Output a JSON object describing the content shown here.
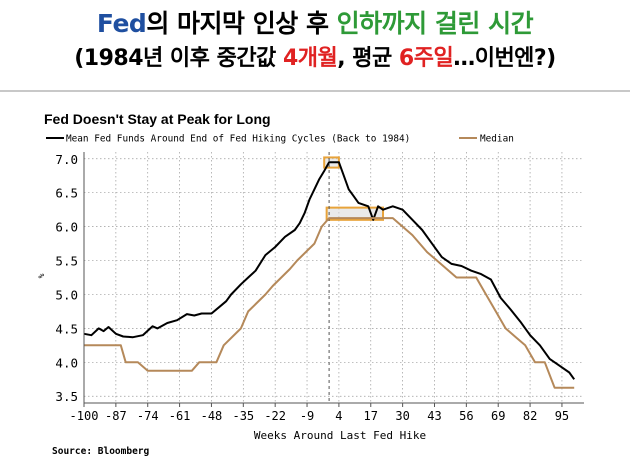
{
  "headline": {
    "line1": {
      "p1": "Fed",
      "p2": "의 마지막 인상 후 ",
      "p3": "인하까지 걸린 시간"
    },
    "line2": {
      "p1": "(1984년 이후 중간값 ",
      "p2": "4개월",
      "p3": ", 평균 ",
      "p4": "6주일",
      "p5": "…이번엔?)"
    }
  },
  "source": "Source: Bloomberg",
  "colors": {
    "mean": "#000000",
    "median": "#b5895a",
    "highlight": "#e8a33a",
    "blue": "#1f4fa0",
    "green": "#2e9a37",
    "red": "#e02222"
  },
  "chart_data": {
    "type": "line",
    "title": "Fed Doesn't Stay at Peak for Long",
    "xlabel": "Weeks Around Last Fed Hike",
    "ylabel": "%",
    "xlim": [
      -100,
      104
    ],
    "ylim": [
      3.4,
      7.1
    ],
    "xticks": [
      -100,
      -87,
      -74,
      -61,
      -48,
      -35,
      -22,
      -9,
      4,
      17,
      30,
      43,
      56,
      69,
      82,
      95
    ],
    "yticks": [
      3.5,
      4.0,
      4.5,
      5.0,
      5.5,
      6.0,
      6.5,
      7.0
    ],
    "grid": true,
    "legend": "top-left",
    "series": [
      {
        "name": "Mean Fed Funds Around End of Fed Hiking Cycles (Back to 1984)",
        "color": "#000000",
        "x": [
          -100,
          -97,
          -94,
          -92,
          -90,
          -87,
          -84,
          -80,
          -76,
          -72,
          -70,
          -66,
          -62,
          -58,
          -55,
          -52,
          -48,
          -44,
          -42,
          -40,
          -36,
          -33,
          -30,
          -26,
          -22,
          -18,
          -14,
          -12,
          -10,
          -8,
          -6,
          -4,
          -2,
          0,
          2,
          4,
          6,
          8,
          10,
          12,
          16,
          18,
          20,
          22,
          26,
          30,
          34,
          38,
          42,
          46,
          50,
          54,
          58,
          62,
          66,
          70,
          74,
          78,
          82,
          86,
          90,
          94,
          98,
          100
        ],
        "y": [
          4.42,
          4.4,
          4.5,
          4.46,
          4.52,
          4.42,
          4.38,
          4.37,
          4.4,
          4.53,
          4.5,
          4.58,
          4.62,
          4.71,
          4.69,
          4.72,
          4.72,
          4.84,
          4.9,
          5.0,
          5.15,
          5.25,
          5.35,
          5.58,
          5.7,
          5.85,
          5.95,
          6.05,
          6.2,
          6.4,
          6.55,
          6.7,
          6.82,
          6.95,
          6.95,
          6.95,
          6.75,
          6.55,
          6.45,
          6.35,
          6.3,
          6.1,
          6.3,
          6.25,
          6.3,
          6.25,
          6.1,
          5.95,
          5.75,
          5.55,
          5.45,
          5.42,
          5.35,
          5.3,
          5.22,
          4.95,
          4.78,
          4.6,
          4.4,
          4.25,
          4.05,
          3.95,
          3.85,
          3.75
        ]
      },
      {
        "name": "Median",
        "color": "#b5895a",
        "x": [
          -100,
          -92,
          -85,
          -83,
          -78,
          -74,
          -70,
          -66,
          -63,
          -56,
          -53,
          -46,
          -43,
          -36,
          -33,
          -26,
          -23,
          -16,
          -13,
          -6,
          -3,
          0,
          3,
          6,
          10,
          14,
          18,
          22,
          26,
          30,
          34,
          40,
          44,
          48,
          52,
          56,
          60,
          64,
          68,
          72,
          76,
          80,
          84,
          88,
          92,
          96,
          100
        ],
        "y": [
          4.25,
          4.25,
          4.25,
          4.0,
          4.0,
          3.875,
          3.875,
          3.875,
          3.875,
          3.875,
          4.0,
          4.0,
          4.25,
          4.5,
          4.75,
          5.0,
          5.125,
          5.375,
          5.5,
          5.75,
          6.0,
          6.125,
          6.125,
          6.125,
          6.125,
          6.125,
          6.125,
          6.125,
          6.125,
          6.0,
          5.875,
          5.625,
          5.5,
          5.375,
          5.25,
          5.25,
          5.25,
          5.0,
          4.75,
          4.5,
          4.375,
          4.25,
          4.0,
          4.0,
          3.625,
          3.625,
          3.625
        ]
      }
    ],
    "annotations": [
      {
        "type": "highlight-box",
        "label": "peak of mean",
        "x_range": [
          -2,
          4
        ],
        "y_range": [
          6.87,
          7.02
        ]
      },
      {
        "type": "highlight-box",
        "label": "plateau of median",
        "x_range": [
          -1,
          22
        ],
        "y_range": [
          6.1,
          6.28
        ]
      },
      {
        "type": "vertical-dashed",
        "x": 0
      }
    ]
  }
}
